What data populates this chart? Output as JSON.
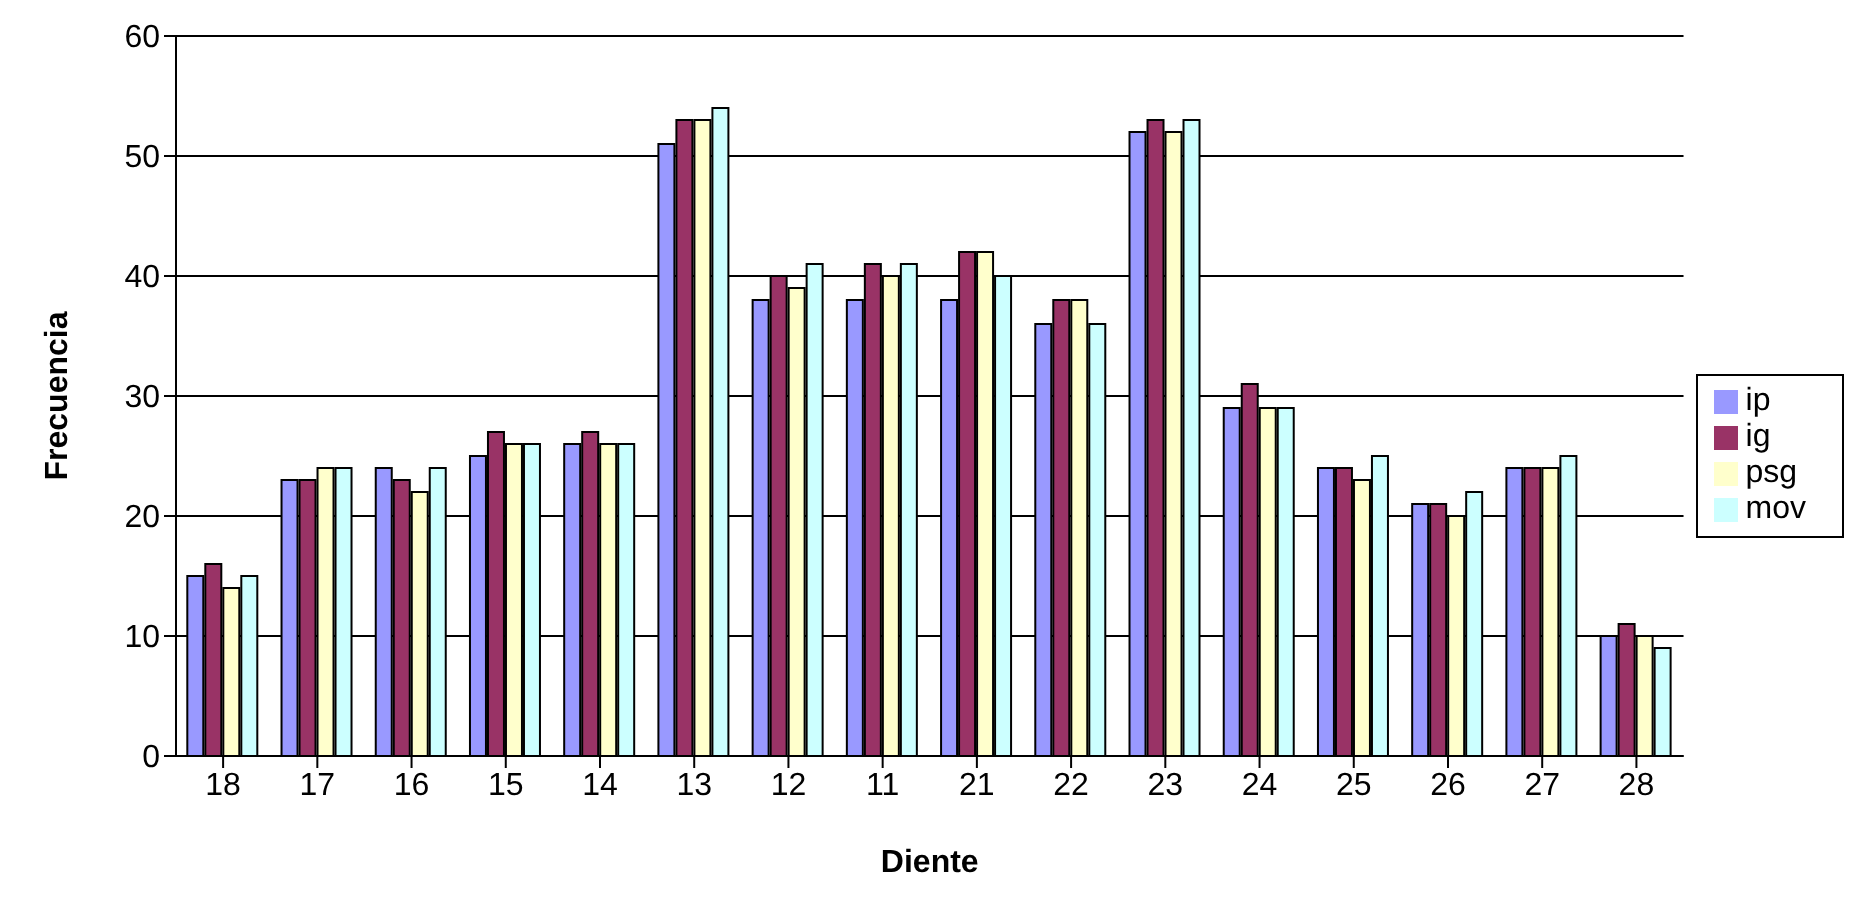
{
  "chart_data": {
    "type": "bar",
    "xlabel": "Diente",
    "ylabel": "Frecuencia",
    "categories": [
      "18",
      "17",
      "16",
      "15",
      "14",
      "13",
      "12",
      "11",
      "21",
      "22",
      "23",
      "24",
      "25",
      "26",
      "27",
      "28"
    ],
    "series": [
      {
        "name": "ip",
        "color": "#9999ff",
        "values": [
          15,
          23,
          24,
          25,
          26,
          51,
          38,
          38,
          38,
          36,
          52,
          29,
          24,
          21,
          24,
          10
        ]
      },
      {
        "name": "ig",
        "color": "#993366",
        "values": [
          16,
          23,
          23,
          27,
          27,
          53,
          40,
          41,
          42,
          38,
          53,
          31,
          24,
          21,
          24,
          11
        ]
      },
      {
        "name": "psg",
        "color": "#ffffcc",
        "values": [
          14,
          24,
          22,
          26,
          26,
          53,
          39,
          40,
          42,
          38,
          52,
          29,
          23,
          20,
          24,
          10
        ]
      },
      {
        "name": "mov",
        "color": "#ccffff",
        "values": [
          15,
          24,
          24,
          26,
          26,
          54,
          41,
          41,
          40,
          36,
          53,
          29,
          25,
          22,
          25,
          9
        ]
      }
    ],
    "ylim": [
      0,
      60
    ],
    "yticks": [
      0,
      10,
      20,
      30,
      40,
      50,
      60
    ],
    "grid": "y",
    "legend": "right"
  }
}
